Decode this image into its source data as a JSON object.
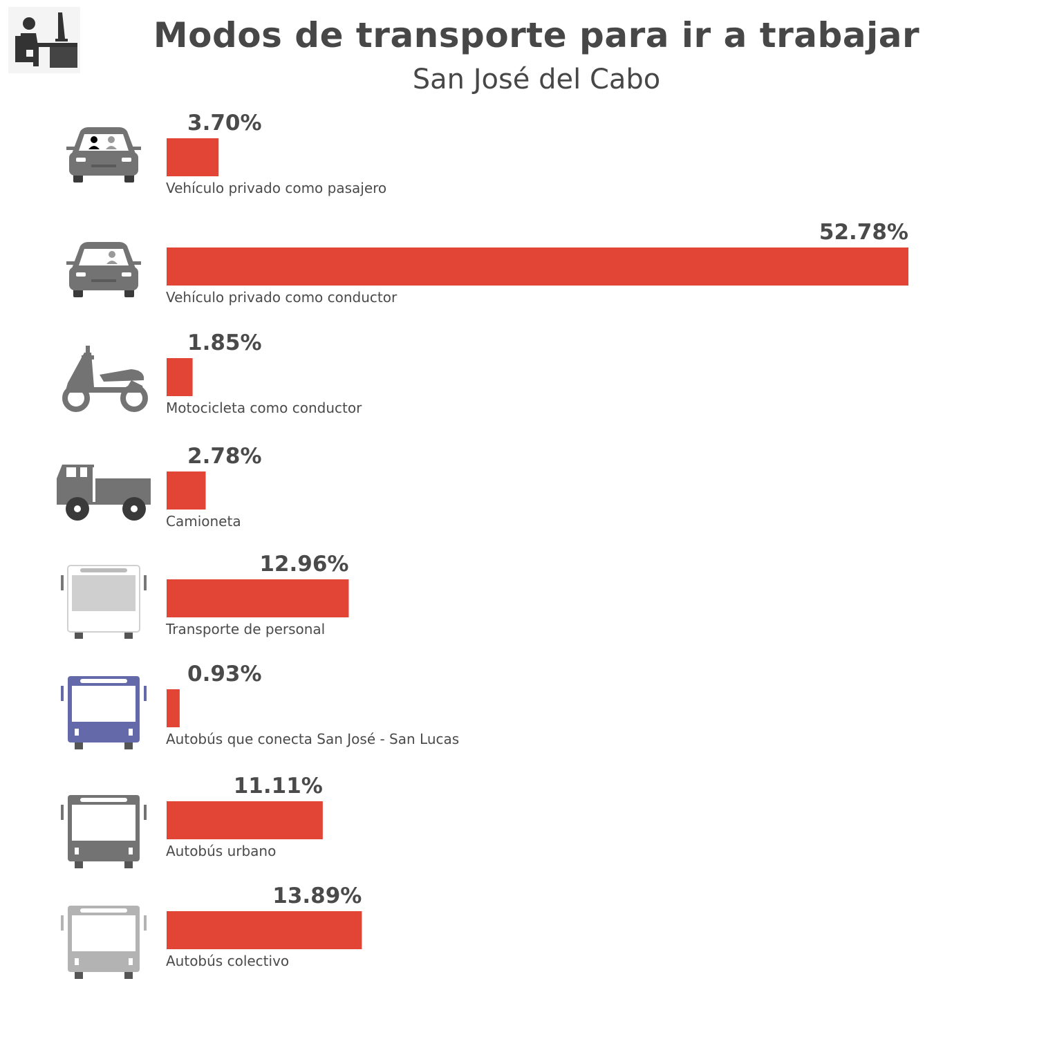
{
  "header": {
    "title": "Modos de transporte para ir a trabajar",
    "subtitle": "San José del Cabo",
    "logo_icon": "office-worker-icon"
  },
  "colors": {
    "bar": "#e24536",
    "text": "#4a4a4a",
    "icon_gray": "#737373",
    "icon_light": "#cfcfcf",
    "icon_blue": "#6469a9",
    "icon_silver": "#b3b3b3"
  },
  "chart_data": {
    "type": "bar",
    "orientation": "horizontal",
    "title": "Modos de transporte para ir a trabajar",
    "subtitle": "San José del Cabo",
    "categories": [
      "Vehículo privado como pasajero",
      "Vehículo privado como conductor",
      "Motocicleta como conductor",
      "Camioneta",
      "Transporte de personal",
      "Autobús que conecta San José - San Lucas",
      "Autobús urbano",
      "Autobús colectivo"
    ],
    "values": [
      3.7,
      52.78,
      1.85,
      2.78,
      12.96,
      0.93,
      11.11,
      13.89
    ],
    "value_labels": [
      "3.70%",
      "52.78%",
      "1.85%",
      "2.78%",
      "12.96%",
      "0.93%",
      "11.11%",
      "13.89%"
    ],
    "icons": [
      "car-passenger-icon",
      "car-driver-icon",
      "motorcycle-icon",
      "pickup-truck-icon",
      "staff-bus-icon",
      "blue-bus-icon",
      "urban-bus-icon",
      "collective-bus-icon"
    ],
    "unit": "%",
    "xlim": [
      0,
      52.78
    ],
    "grid": false,
    "legend": "none"
  }
}
